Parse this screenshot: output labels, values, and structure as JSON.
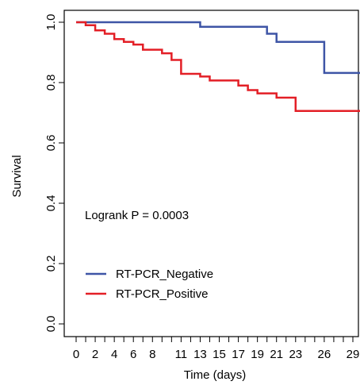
{
  "chart_data": {
    "type": "line",
    "subtype": "kaplan-meier-step",
    "xlabel": "Time (days)",
    "ylabel": "Survival",
    "xlim": [
      -1,
      30
    ],
    "ylim": [
      0,
      1.05
    ],
    "x_ticks": [
      0,
      1,
      2,
      3,
      4,
      5,
      6,
      7,
      8,
      9,
      10,
      11,
      12,
      13,
      14,
      15,
      16,
      17,
      18,
      19,
      20,
      21,
      22,
      23,
      24,
      25,
      26,
      27,
      28,
      29,
      30
    ],
    "x_tick_labels": [
      "0",
      "2",
      "4",
      "6",
      "8",
      "11",
      "13",
      "15",
      "17",
      "19",
      "21",
      "23",
      "26",
      "29"
    ],
    "x_tick_label_positions": [
      0,
      2,
      4,
      6,
      8,
      11,
      13,
      15,
      17,
      19,
      21,
      23,
      26,
      29
    ],
    "y_ticks": [
      0.0,
      0.2,
      0.4,
      0.6,
      0.8,
      1.0
    ],
    "y_tick_labels": [
      "0.0",
      "0.2",
      "0.4",
      "0.6",
      "0.8",
      "1.0"
    ],
    "grid": false,
    "legend_position": "bottom-left",
    "annotation": "Logrank P = 0.0003",
    "series": [
      {
        "name": "RT-PCR_Negative",
        "color": "#3e55a6",
        "x": [
          0,
          13,
          20,
          21,
          26,
          30
        ],
        "y": [
          1.0,
          0.985,
          0.962,
          0.935,
          0.832,
          0.832
        ]
      },
      {
        "name": "RT-PCR_Positive",
        "color": "#e31f26",
        "x": [
          0,
          1,
          2,
          3,
          4,
          5,
          6,
          7,
          9,
          10,
          11,
          13,
          14,
          17,
          18,
          19,
          21,
          23,
          30
        ],
        "y": [
          1.0,
          0.99,
          0.973,
          0.962,
          0.944,
          0.935,
          0.926,
          0.909,
          0.897,
          0.875,
          0.829,
          0.82,
          0.807,
          0.79,
          0.775,
          0.764,
          0.75,
          0.706,
          0.706
        ]
      }
    ]
  }
}
